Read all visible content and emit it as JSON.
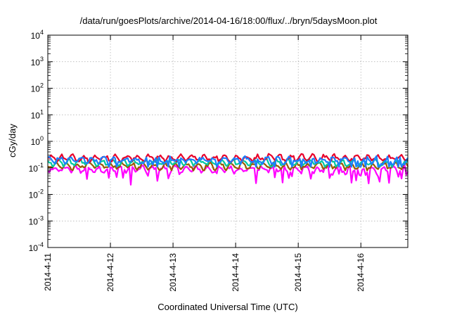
{
  "chart_data": {
    "type": "line",
    "title": "/data/run/goesPlots/archive/2014-04-16/18:00/flux/../bryn/5daysMoon.plot",
    "xlabel": "Coordinated Universal Time (UTC)",
    "ylabel": "cGy/day",
    "y_scale": "log",
    "ylim": [
      0.0001,
      10000
    ],
    "y_ticks": [
      {
        "base": "10",
        "exp": "-4",
        "value": 0.0001
      },
      {
        "base": "10",
        "exp": "-3",
        "value": 0.001
      },
      {
        "base": "10",
        "exp": "-2",
        "value": 0.01
      },
      {
        "base": "10",
        "exp": "-1",
        "value": 0.1
      },
      {
        "base": "10",
        "exp": "0",
        "value": 1
      },
      {
        "base": "10",
        "exp": "1",
        "value": 10
      },
      {
        "base": "10",
        "exp": "2",
        "value": 100
      },
      {
        "base": "10",
        "exp": "3",
        "value": 1000
      },
      {
        "base": "10",
        "exp": "4",
        "value": 10000
      }
    ],
    "x_ticks": [
      "2014-4-11",
      "2014-4-12",
      "2014-4-13",
      "2014-4-14",
      "2014-4-15",
      "2014-4-16"
    ],
    "xlim": [
      "2014-04-11T00:00",
      "2014-04-16T18:00"
    ],
    "grid": true,
    "colors": [
      "#e8002a",
      "#1a7fff",
      "#00c8a0",
      "#9a5a00",
      "#ff00ff"
    ],
    "series": [
      {
        "color": "#e8002a",
        "typical_value": 0.24
      },
      {
        "color": "#1a7fff",
        "typical_value": 0.2
      },
      {
        "color": "#00c8a0",
        "typical_value": 0.16
      },
      {
        "color": "#9a5a00",
        "typical_value": 0.12
      },
      {
        "color": "#ff00ff",
        "typical_value": 0.09
      }
    ]
  }
}
